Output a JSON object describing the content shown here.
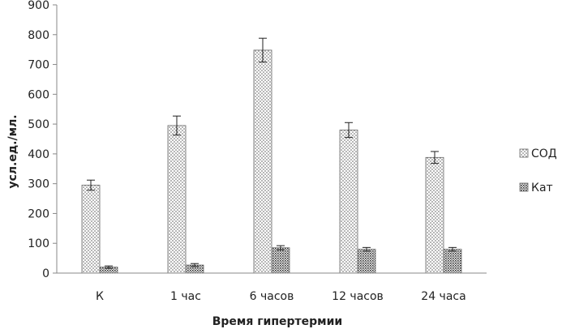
{
  "chart_data": {
    "type": "bar",
    "title": "",
    "xlabel": "Время гипертермии",
    "ylabel": "усл.ед./мл.",
    "ylim": [
      0,
      900
    ],
    "yticks": [
      0,
      100,
      200,
      300,
      400,
      500,
      600,
      700,
      800,
      900
    ],
    "grid": false,
    "legend_position": "right",
    "categories": [
      "К",
      "1 час",
      "6 часов",
      "12 часов",
      "24 часа"
    ],
    "series": [
      {
        "name": "СОД",
        "pattern": "dots",
        "values": [
          295,
          495,
          748,
          480,
          388
        ],
        "errors": [
          17,
          32,
          40,
          25,
          20
        ]
      },
      {
        "name": "Кат",
        "pattern": "dense-dots",
        "values": [
          20,
          27,
          85,
          80,
          80
        ],
        "errors": [
          4,
          5,
          7,
          6,
          6
        ]
      }
    ]
  }
}
